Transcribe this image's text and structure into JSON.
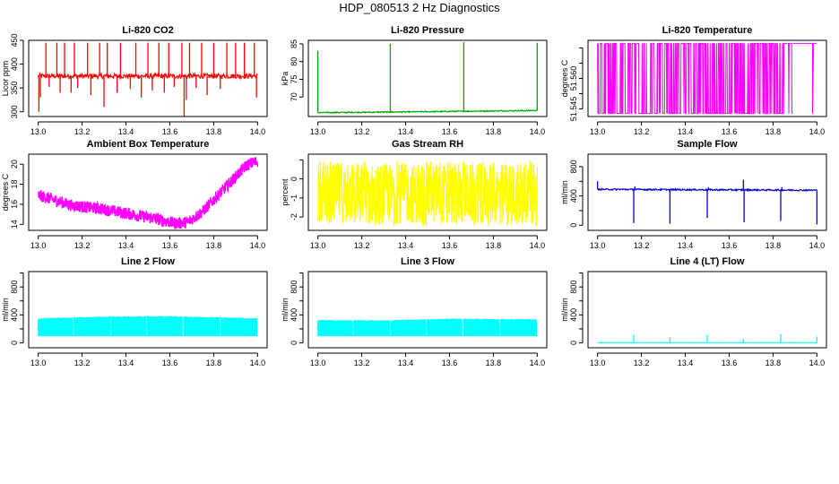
{
  "page": {
    "title": "HDP_080513  2 Hz Diagnostics"
  },
  "chart_data": [
    {
      "type": "line",
      "title": "Li-820 CO2",
      "ylabel": "Licor ppm",
      "xlabel": "",
      "xlim": [
        13.0,
        14.0
      ],
      "ylim": [
        290,
        450
      ],
      "xticks": [
        "13.0",
        "13.2",
        "13.4",
        "13.6",
        "13.8",
        "14.0"
      ],
      "yticks": [
        300,
        350,
        400,
        450
      ],
      "ytick_labels": [
        "300",
        "350",
        "400",
        "450"
      ],
      "color": "#ff0000",
      "series": [
        {
          "style": "noisy-line",
          "baseline": 375,
          "noise": 5,
          "spikes": [
            [
              13.003,
              300
            ],
            [
              13.01,
              330
            ],
            [
              13.035,
              445
            ],
            [
              13.05,
              352
            ],
            [
              13.085,
              445
            ],
            [
              13.1,
              340
            ],
            [
              13.12,
              445
            ],
            [
              13.15,
              340
            ],
            [
              13.165,
              445
            ],
            [
              13.18,
              350
            ],
            [
              13.225,
              445
            ],
            [
              13.24,
              335
            ],
            [
              13.28,
              445
            ],
            [
              13.3,
              310
            ],
            [
              13.315,
              445
            ],
            [
              13.36,
              340
            ],
            [
              13.375,
              445
            ],
            [
              13.42,
              348
            ],
            [
              13.445,
              445
            ],
            [
              13.47,
              330
            ],
            [
              13.5,
              445
            ],
            [
              13.52,
              345
            ],
            [
              13.55,
              445
            ],
            [
              13.575,
              340
            ],
            [
              13.595,
              445
            ],
            [
              13.62,
              352
            ],
            [
              13.655,
              445
            ],
            [
              13.665,
              290
            ],
            [
              13.675,
              325
            ],
            [
              13.69,
              445
            ],
            [
              13.72,
              350
            ],
            [
              13.745,
              445
            ],
            [
              13.77,
              335
            ],
            [
              13.8,
              445
            ],
            [
              13.83,
              348
            ],
            [
              13.86,
              445
            ],
            [
              13.9,
              445
            ],
            [
              13.94,
              445
            ],
            [
              13.985,
              445
            ],
            [
              13.995,
              330
            ]
          ]
        }
      ]
    },
    {
      "type": "line",
      "title": "Li-820 Pressure",
      "ylabel": "kPa",
      "xlabel": "",
      "xlim": [
        13.0,
        14.0
      ],
      "ylim": [
        64.5,
        86
      ],
      "xticks": [
        "13.0",
        "13.2",
        "13.4",
        "13.6",
        "13.8",
        "14.0"
      ],
      "yticks": [
        70,
        75,
        80,
        85
      ],
      "ytick_labels": [
        "70",
        "75",
        "80",
        "85"
      ],
      "color": "#00aa00",
      "series": [
        {
          "style": "noisy-line",
          "baseline": 65.8,
          "noise": 0.15,
          "trend": [
            [
              13.0,
              65.6
            ],
            [
              13.4,
              65.8
            ],
            [
              14.0,
              66.2
            ]
          ],
          "spikes": [
            [
              13.0,
              83
            ],
            [
              13.33,
              85
            ],
            [
              13.665,
              85.5
            ],
            [
              14.0,
              85.3
            ]
          ]
        }
      ]
    },
    {
      "type": "line",
      "title": "Li-820 Temperature",
      "ylabel": "degrees C",
      "xlabel": "",
      "xlim": [
        13.0,
        14.0
      ],
      "ylim": [
        51.5425,
        51.5675
      ],
      "xticks": [
        "13.0",
        "13.2",
        "13.4",
        "13.6",
        "13.8",
        "14.0"
      ],
      "yticks": [
        51.545,
        51.55,
        51.555,
        51.56,
        51.565
      ],
      "ytick_labels": [
        "51.545",
        "",
        "51.560",
        "",
        ""
      ],
      "color": "#ff00ff",
      "series": [
        {
          "style": "toggle-band",
          "low": 51.5435,
          "high": 51.5665,
          "band_end": 13.89,
          "after_band": [
            [
              13.89,
              51.5665
            ],
            [
              13.98,
              51.5665
            ],
            [
              13.98,
              51.5435
            ],
            [
              13.985,
              51.5665
            ],
            [
              14.0,
              51.5665
            ]
          ]
        }
      ]
    },
    {
      "type": "line",
      "title": "Ambient Box Temperature",
      "ylabel": "degrees C",
      "xlabel": "",
      "xlim": [
        13.0,
        14.0
      ],
      "ylim": [
        13.4,
        21
      ],
      "xticks": [
        "13.0",
        "13.2",
        "13.4",
        "13.6",
        "13.8",
        "14.0"
      ],
      "yticks": [
        14,
        16,
        18,
        20
      ],
      "ytick_labels": [
        "14",
        "16",
        "18",
        "20"
      ],
      "color": "#ff00ff",
      "series": [
        {
          "style": "thick-band",
          "width": 1.2,
          "trend": [
            [
              13.0,
              16.9
            ],
            [
              13.05,
              16.6
            ],
            [
              13.15,
              15.9
            ],
            [
              13.3,
              15.5
            ],
            [
              13.45,
              14.9
            ],
            [
              13.55,
              14.5
            ],
            [
              13.62,
              14.1
            ],
            [
              13.68,
              14.2
            ],
            [
              13.75,
              15.3
            ],
            [
              13.85,
              17.6
            ],
            [
              13.95,
              19.9
            ],
            [
              14.0,
              20.3
            ]
          ]
        }
      ]
    },
    {
      "type": "line",
      "title": "Gas Stream RH",
      "ylabel": "percent",
      "xlabel": "",
      "xlim": [
        13.0,
        14.0
      ],
      "ylim": [
        -2.7,
        1.3
      ],
      "xticks": [
        "13.0",
        "13.2",
        "13.4",
        "13.6",
        "13.8",
        "14.0"
      ],
      "yticks": [
        -2,
        -1,
        0,
        1
      ],
      "ytick_labels": [
        "-2",
        "-1",
        "0",
        ""
      ],
      "color": "#ffff00",
      "series": [
        {
          "style": "noise-band",
          "low": -2.35,
          "high": 0.8,
          "spread_low": -2.5,
          "spread_high": 0.95
        }
      ]
    },
    {
      "type": "line",
      "title": "Sample Flow",
      "ylabel": "ml/min",
      "xlabel": "",
      "xlim": [
        13.0,
        14.0
      ],
      "ylim": [
        -70,
        970
      ],
      "xticks": [
        "13.0",
        "13.2",
        "13.4",
        "13.6",
        "13.8",
        "14.0"
      ],
      "yticks": [
        0,
        200,
        400,
        600,
        800
      ],
      "ytick_labels": [
        "0",
        "",
        "400",
        "",
        "800"
      ],
      "color": "#0000cc",
      "series": [
        {
          "style": "noisy-line",
          "baseline": 490,
          "noise": 10,
          "trend": [
            [
              13.0,
              490
            ],
            [
              14.0,
              478
            ]
          ],
          "spikes": [
            [
              13.0,
              600
            ],
            [
              13.165,
              30
            ],
            [
              13.17,
              530
            ],
            [
              13.33,
              20
            ],
            [
              13.5,
              100
            ],
            [
              13.505,
              520
            ],
            [
              13.665,
              620
            ],
            [
              13.668,
              40
            ],
            [
              13.835,
              60
            ],
            [
              13.84,
              520
            ],
            [
              14.0,
              10
            ]
          ]
        }
      ]
    },
    {
      "type": "line",
      "title": "Line 2 Flow",
      "ylabel": "ml/min",
      "xlabel": "",
      "xlim": [
        13.0,
        14.0
      ],
      "ylim": [
        -70,
        1020
      ],
      "xticks": [
        "13.0",
        "13.2",
        "13.4",
        "13.6",
        "13.8",
        "14.0"
      ],
      "yticks": [
        0,
        200,
        400,
        600,
        800,
        1000
      ],
      "ytick_labels": [
        "0",
        "",
        "400",
        "",
        "800",
        ""
      ],
      "color": "#00ffff",
      "series": [
        {
          "style": "block-band",
          "low": 100,
          "high": 360,
          "trend_high": [
            [
              13.0,
              345
            ],
            [
              13.3,
              370
            ],
            [
              13.6,
              375
            ],
            [
              14.0,
              345
            ]
          ],
          "gaps": [
            13.16,
            13.33,
            13.495,
            13.66,
            13.83
          ]
        }
      ]
    },
    {
      "type": "line",
      "title": "Line 3 Flow",
      "ylabel": "ml/min",
      "xlabel": "",
      "xlim": [
        13.0,
        14.0
      ],
      "ylim": [
        -70,
        1020
      ],
      "xticks": [
        "13.0",
        "13.2",
        "13.4",
        "13.6",
        "13.8",
        "14.0"
      ],
      "yticks": [
        0,
        200,
        400,
        600,
        800,
        1000
      ],
      "ytick_labels": [
        "0",
        "",
        "400",
        "",
        "800",
        ""
      ],
      "color": "#00ffff",
      "series": [
        {
          "style": "block-band",
          "low": 100,
          "high": 330,
          "trend_high": [
            [
              13.0,
              320
            ],
            [
              13.3,
              315
            ],
            [
              13.6,
              340
            ],
            [
              14.0,
              330
            ]
          ],
          "gaps": [
            13.16,
            13.33,
            13.495,
            13.66,
            13.83
          ]
        }
      ]
    },
    {
      "type": "line",
      "title": "Line 4 (LT) Flow",
      "ylabel": "ml/min",
      "xlabel": "",
      "xlim": [
        13.0,
        14.0
      ],
      "ylim": [
        -70,
        1020
      ],
      "xticks": [
        "13.0",
        "13.2",
        "13.4",
        "13.6",
        "13.8",
        "14.0"
      ],
      "yticks": [
        0,
        200,
        400,
        600,
        800,
        1000
      ],
      "ytick_labels": [
        "0",
        "",
        "400",
        "",
        "800",
        ""
      ],
      "color": "#00ffff",
      "series": [
        {
          "style": "noisy-line",
          "baseline": 3,
          "noise": 1,
          "spikes": [
            [
              13.165,
              120
            ],
            [
              13.33,
              80
            ],
            [
              13.5,
              115
            ],
            [
              13.665,
              60
            ],
            [
              13.835,
              125
            ],
            [
              14.0,
              90
            ]
          ]
        }
      ]
    }
  ]
}
